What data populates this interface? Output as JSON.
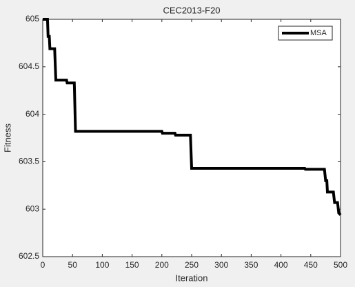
{
  "chart_data": {
    "type": "line",
    "title": "CEC2013-F20",
    "xlabel": "Iteration",
    "ylabel": "Fitness",
    "x": [
      0,
      8,
      9,
      11,
      12,
      20,
      22,
      40,
      41,
      53,
      55,
      200,
      201,
      222,
      223,
      248,
      250,
      440,
      441,
      473,
      475,
      477,
      478,
      488,
      490,
      495,
      497,
      500
    ],
    "series": [
      {
        "name": "MSA",
        "color": "#000000",
        "values": [
          605,
          605,
          604.82,
          604.82,
          604.69,
          604.69,
          604.36,
          604.36,
          604.33,
          604.33,
          603.82,
          603.82,
          603.8,
          603.8,
          603.78,
          603.78,
          603.43,
          603.43,
          603.42,
          603.42,
          603.3,
          603.3,
          603.18,
          603.18,
          603.07,
          603.07,
          602.96,
          602.94
        ]
      }
    ],
    "xlim": [
      0,
      500
    ],
    "xticks": [
      0,
      50,
      100,
      150,
      200,
      250,
      300,
      350,
      400,
      450,
      500
    ],
    "ylim": [
      602.5,
      605
    ],
    "yticks": [
      602.5,
      603,
      603.5,
      604,
      604.5,
      605
    ],
    "legend": "top-right"
  }
}
